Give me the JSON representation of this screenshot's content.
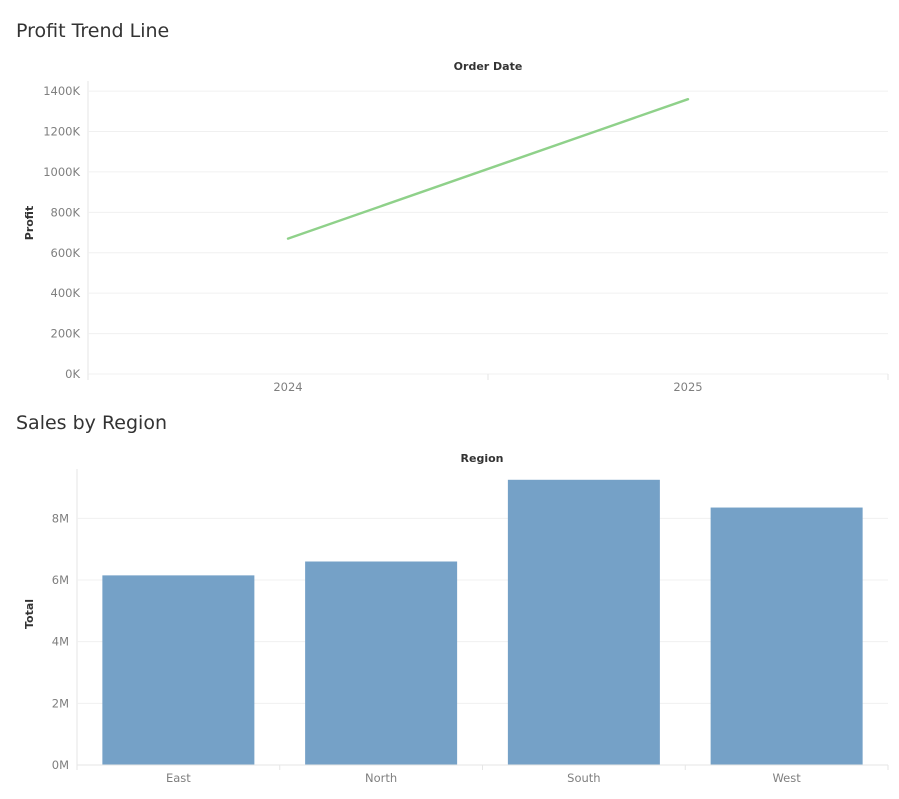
{
  "chart_data": [
    {
      "type": "line",
      "title": "Profit Trend Line",
      "column_header": "Order Date",
      "ylabel": "Profit",
      "x": [
        "2024",
        "2025"
      ],
      "series": [
        {
          "values": [
            670000,
            1360000
          ],
          "color": "#8fd18a"
        }
      ],
      "ylim": [
        0,
        1450000
      ],
      "yticks": [
        0,
        200000,
        400000,
        600000,
        800000,
        1000000,
        1200000,
        1400000
      ],
      "ytick_labels": [
        "0K",
        "200K",
        "400K",
        "600K",
        "800K",
        "1000K",
        "1200K",
        "1400K"
      ],
      "grid": true
    },
    {
      "type": "bar",
      "title": "Sales by Region",
      "column_header": "Region",
      "ylabel": "Total",
      "categories": [
        "East",
        "North",
        "South",
        "West"
      ],
      "values": [
        6150000,
        6600000,
        9250000,
        8350000
      ],
      "bar_color": "#75a1c7",
      "ylim": [
        0,
        9600000
      ],
      "yticks": [
        0,
        2000000,
        4000000,
        6000000,
        8000000
      ],
      "ytick_labels": [
        "0M",
        "2M",
        "4M",
        "6M",
        "8M"
      ],
      "grid": true
    }
  ]
}
